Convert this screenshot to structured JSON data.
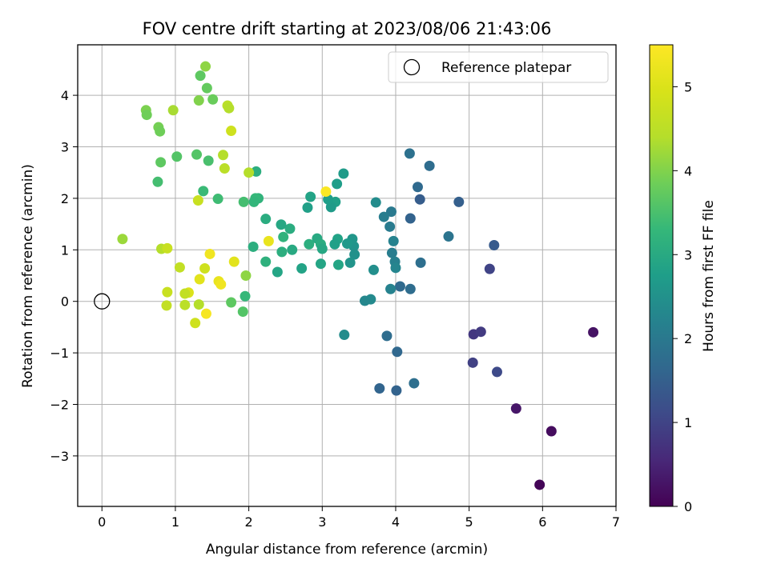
{
  "chart_data": {
    "type": "scatter",
    "title": "FOV centre drift starting at 2023/08/06 21:43:06",
    "xlabel": "Angular distance from reference (arcmin)",
    "ylabel": "Rotation from reference (arcmin)",
    "xlim": [
      -0.33,
      7.0
    ],
    "ylim": [
      -3.98,
      4.98
    ],
    "xticks": [
      0,
      1,
      2,
      3,
      4,
      5,
      6,
      7
    ],
    "yticks": [
      -3,
      -2,
      -1,
      0,
      1,
      2,
      3,
      4
    ],
    "grid": true,
    "legend": {
      "placement": "top-right",
      "entries": [
        {
          "label": "Reference platepar",
          "marker": "open-circle",
          "x": 0,
          "y": 0
        }
      ]
    },
    "colorbar": {
      "label": "Hours from first FF file",
      "colormap": "viridis",
      "range": [
        0,
        5.5
      ],
      "ticks": [
        0,
        1,
        2,
        3,
        4,
        5
      ]
    },
    "series": [
      {
        "name": "FOV drift",
        "columns": [
          "x",
          "y",
          "hours"
        ],
        "points": [
          [
            5.96,
            -3.56,
            0.05
          ],
          [
            6.12,
            -2.52,
            0.15
          ],
          [
            6.69,
            -0.6,
            0.25
          ],
          [
            5.64,
            -2.08,
            0.3
          ],
          [
            5.06,
            -0.64,
            0.8
          ],
          [
            5.16,
            -0.59,
            0.85
          ],
          [
            5.05,
            -1.19,
            0.95
          ],
          [
            5.28,
            0.63,
            1.0
          ],
          [
            5.38,
            -1.37,
            1.1
          ],
          [
            5.34,
            1.09,
            1.4
          ],
          [
            4.86,
            1.93,
            1.5
          ],
          [
            4.33,
            1.98,
            1.45
          ],
          [
            4.2,
            1.61,
            1.55
          ],
          [
            4.3,
            2.22,
            1.7
          ],
          [
            4.46,
            2.63,
            1.75
          ],
          [
            4.19,
            2.87,
            1.85
          ],
          [
            4.72,
            1.26,
            1.9
          ],
          [
            4.34,
            0.75,
            1.8
          ],
          [
            4.2,
            0.24,
            1.75
          ],
          [
            4.06,
            0.29,
            1.7
          ],
          [
            4.02,
            -0.98,
            1.65
          ],
          [
            3.88,
            -0.67,
            1.75
          ],
          [
            4.01,
            -1.73,
            1.55
          ],
          [
            3.78,
            -1.69,
            1.6
          ],
          [
            4.25,
            -1.59,
            1.8
          ],
          [
            3.94,
            1.74,
            2.0
          ],
          [
            3.84,
            1.64,
            2.1
          ],
          [
            3.92,
            1.45,
            2.05
          ],
          [
            3.97,
            1.17,
            2.2
          ],
          [
            3.95,
            0.94,
            2.1
          ],
          [
            3.99,
            0.77,
            2.15
          ],
          [
            4.0,
            0.65,
            2.25
          ],
          [
            3.93,
            0.24,
            2.2
          ],
          [
            3.73,
            1.92,
            2.4
          ],
          [
            3.66,
            0.04,
            2.35
          ],
          [
            3.58,
            0.01,
            2.3
          ],
          [
            3.7,
            0.61,
            2.45
          ],
          [
            3.43,
            1.07,
            2.55
          ],
          [
            3.44,
            0.91,
            2.5
          ],
          [
            3.38,
            0.75,
            2.55
          ],
          [
            3.41,
            1.21,
            2.6
          ],
          [
            3.34,
            1.12,
            2.65
          ],
          [
            3.29,
            2.48,
            2.7
          ],
          [
            3.3,
            -0.65,
            2.4
          ],
          [
            3.2,
            2.28,
            2.75
          ],
          [
            3.18,
            1.93,
            2.8
          ],
          [
            3.12,
            1.83,
            2.7
          ],
          [
            3.21,
            1.21,
            2.85
          ],
          [
            3.17,
            1.11,
            2.8
          ],
          [
            3.22,
            0.71,
            2.9
          ],
          [
            3.08,
            1.98,
            2.75
          ],
          [
            2.84,
            2.03,
            2.85
          ],
          [
            2.8,
            1.82,
            2.8
          ],
          [
            2.93,
            1.22,
            3.0
          ],
          [
            2.98,
            1.11,
            3.05
          ],
          [
            2.82,
            1.11,
            3.1
          ],
          [
            3.0,
            1.02,
            2.95
          ],
          [
            2.98,
            0.73,
            2.9
          ],
          [
            2.72,
            0.64,
            2.85
          ],
          [
            2.59,
            1.0,
            3.0
          ],
          [
            2.56,
            1.41,
            3.05
          ],
          [
            2.44,
            1.49,
            2.95
          ],
          [
            2.47,
            1.25,
            3.2
          ],
          [
            2.45,
            0.96,
            3.1
          ],
          [
            2.39,
            0.57,
            2.9
          ],
          [
            2.23,
            1.6,
            3.05
          ],
          [
            2.23,
            0.77,
            3.15
          ],
          [
            2.13,
            2.0,
            3.2
          ],
          [
            2.09,
            2.0,
            3.3
          ],
          [
            2.07,
            1.93,
            3.25
          ],
          [
            2.06,
            1.06,
            3.1
          ],
          [
            2.1,
            2.52,
            3.1
          ],
          [
            1.93,
            1.93,
            3.45
          ],
          [
            1.95,
            0.1,
            3.3
          ],
          [
            1.92,
            -0.2,
            3.6
          ],
          [
            1.96,
            0.5,
            4.1
          ],
          [
            1.76,
            -0.02,
            3.7
          ],
          [
            1.58,
            1.99,
            3.4
          ],
          [
            1.38,
            2.14,
            3.35
          ],
          [
            1.45,
            2.73,
            3.5
          ],
          [
            1.29,
            2.85,
            3.6
          ],
          [
            1.02,
            2.81,
            3.6
          ],
          [
            0.8,
            2.7,
            3.7
          ],
          [
            0.76,
            2.32,
            3.45
          ],
          [
            1.51,
            3.92,
            3.8
          ],
          [
            1.43,
            4.14,
            3.75
          ],
          [
            1.34,
            4.38,
            3.7
          ],
          [
            1.41,
            4.56,
            4.1
          ],
          [
            1.32,
            3.9,
            4.0
          ],
          [
            0.77,
            3.38,
            3.9
          ],
          [
            0.79,
            3.3,
            3.85
          ],
          [
            0.6,
            3.71,
            3.95
          ],
          [
            0.61,
            3.62,
            3.85
          ],
          [
            0.97,
            3.71,
            4.3
          ],
          [
            1.71,
            3.8,
            4.5
          ],
          [
            1.73,
            3.75,
            4.4
          ],
          [
            1.76,
            3.31,
            4.8
          ],
          [
            1.65,
            2.84,
            4.4
          ],
          [
            1.67,
            2.58,
            4.5
          ],
          [
            1.31,
            1.96,
            4.7
          ],
          [
            2.0,
            2.5,
            4.4
          ],
          [
            0.28,
            1.21,
            4.2
          ],
          [
            0.81,
            1.02,
            4.4
          ],
          [
            0.89,
            1.03,
            4.7
          ],
          [
            1.06,
            0.66,
            4.6
          ],
          [
            1.4,
            0.64,
            4.8
          ],
          [
            1.8,
            0.77,
            5.1
          ],
          [
            1.47,
            0.92,
            5.3
          ],
          [
            1.59,
            0.39,
            5.2
          ],
          [
            1.62,
            0.33,
            5.3
          ],
          [
            1.33,
            0.43,
            5.1
          ],
          [
            1.18,
            0.17,
            5.0
          ],
          [
            1.13,
            0.15,
            4.6
          ],
          [
            0.89,
            0.18,
            4.7
          ],
          [
            0.88,
            -0.08,
            4.6
          ],
          [
            1.13,
            -0.07,
            4.5
          ],
          [
            1.32,
            -0.06,
            4.4
          ],
          [
            1.42,
            -0.24,
            5.4
          ],
          [
            1.27,
            -0.42,
            4.8
          ],
          [
            2.27,
            1.17,
            5.2
          ],
          [
            3.05,
            2.13,
            5.45
          ]
        ]
      }
    ]
  }
}
